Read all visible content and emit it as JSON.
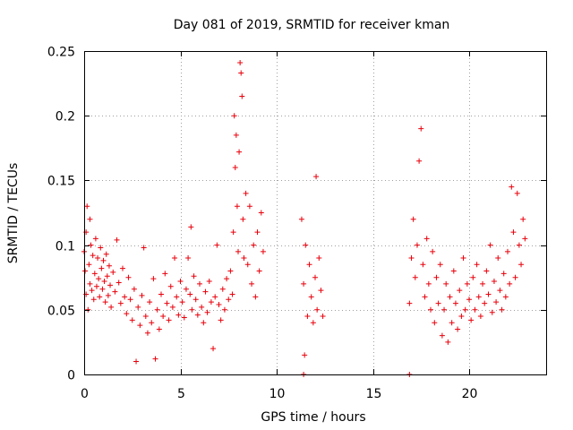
{
  "chart_data": {
    "type": "scatter",
    "title": "Day 081 of 2019, SRMTID for receiver kman",
    "xlabel": "GPS time / hours",
    "ylabel": "SRMTID / TECUs",
    "xlim": [
      0,
      24
    ],
    "ylim": [
      0,
      0.25
    ],
    "grid": true,
    "marker": "+",
    "color": "#e8000b",
    "x_ticks": [
      0,
      5,
      10,
      15,
      20
    ],
    "x_tick_labels": [
      "0",
      "5",
      "10",
      "15",
      "20"
    ],
    "y_ticks": [
      0,
      0.05,
      0.1,
      0.15,
      0.2,
      0.25
    ],
    "y_tick_labels": [
      "0",
      "0.05",
      "0.1",
      "0.15",
      "0.2",
      "0.25"
    ],
    "series": [
      {
        "name": "SRMTID",
        "points": [
          [
            0.0,
            0.095
          ],
          [
            0.05,
            0.08
          ],
          [
            0.1,
            0.062
          ],
          [
            0.1,
            0.11
          ],
          [
            0.15,
            0.13
          ],
          [
            0.2,
            0.05
          ],
          [
            0.25,
            0.085
          ],
          [
            0.3,
            0.07
          ],
          [
            0.3,
            0.12
          ],
          [
            0.35,
            0.1
          ],
          [
            0.4,
            0.065
          ],
          [
            0.45,
            0.092
          ],
          [
            0.5,
            0.058
          ],
          [
            0.55,
            0.078
          ],
          [
            0.6,
            0.105
          ],
          [
            0.65,
            0.068
          ],
          [
            0.7,
            0.09
          ],
          [
            0.75,
            0.074
          ],
          [
            0.8,
            0.06
          ],
          [
            0.85,
            0.098
          ],
          [
            0.9,
            0.082
          ],
          [
            0.95,
            0.066
          ],
          [
            1.0,
            0.088
          ],
          [
            1.05,
            0.072
          ],
          [
            1.1,
            0.056
          ],
          [
            1.15,
            0.093
          ],
          [
            1.2,
            0.076
          ],
          [
            1.25,
            0.061
          ],
          [
            1.3,
            0.084
          ],
          [
            1.35,
            0.069
          ],
          [
            1.4,
            0.052
          ],
          [
            1.5,
            0.079
          ],
          [
            1.6,
            0.064
          ],
          [
            1.7,
            0.104
          ],
          [
            1.8,
            0.071
          ],
          [
            1.9,
            0.055
          ],
          [
            2.0,
            0.082
          ],
          [
            2.1,
            0.06
          ],
          [
            2.2,
            0.047
          ],
          [
            2.3,
            0.075
          ],
          [
            2.4,
            0.058
          ],
          [
            2.5,
            0.042
          ],
          [
            2.6,
            0.066
          ],
          [
            2.7,
            0.01
          ],
          [
            2.8,
            0.052
          ],
          [
            2.9,
            0.038
          ],
          [
            3.0,
            0.061
          ],
          [
            3.1,
            0.098
          ],
          [
            3.2,
            0.045
          ],
          [
            3.3,
            0.032
          ],
          [
            3.4,
            0.056
          ],
          [
            3.5,
            0.04
          ],
          [
            3.6,
            0.074
          ],
          [
            3.7,
            0.012
          ],
          [
            3.8,
            0.05
          ],
          [
            3.9,
            0.035
          ],
          [
            4.0,
            0.062
          ],
          [
            4.1,
            0.045
          ],
          [
            4.2,
            0.078
          ],
          [
            4.3,
            0.055
          ],
          [
            4.4,
            0.042
          ],
          [
            4.5,
            0.068
          ],
          [
            4.6,
            0.052
          ],
          [
            4.7,
            0.09
          ],
          [
            4.8,
            0.06
          ],
          [
            4.9,
            0.046
          ],
          [
            5.0,
            0.072
          ],
          [
            5.1,
            0.056
          ],
          [
            5.2,
            0.044
          ],
          [
            5.3,
            0.066
          ],
          [
            5.4,
            0.09
          ],
          [
            5.5,
            0.062
          ],
          [
            5.55,
            0.114
          ],
          [
            5.6,
            0.05
          ],
          [
            5.7,
            0.076
          ],
          [
            5.8,
            0.058
          ],
          [
            5.9,
            0.046
          ],
          [
            6.0,
            0.07
          ],
          [
            6.1,
            0.052
          ],
          [
            6.2,
            0.04
          ],
          [
            6.3,
            0.064
          ],
          [
            6.4,
            0.048
          ],
          [
            6.5,
            0.072
          ],
          [
            6.6,
            0.056
          ],
          [
            6.7,
            0.02
          ],
          [
            6.8,
            0.06
          ],
          [
            6.9,
            0.1
          ],
          [
            7.0,
            0.054
          ],
          [
            7.1,
            0.042
          ],
          [
            7.2,
            0.066
          ],
          [
            7.3,
            0.05
          ],
          [
            7.4,
            0.074
          ],
          [
            7.5,
            0.058
          ],
          [
            7.6,
            0.08
          ],
          [
            7.7,
            0.062
          ],
          [
            7.75,
            0.11
          ],
          [
            7.8,
            0.2
          ],
          [
            7.85,
            0.16
          ],
          [
            7.9,
            0.185
          ],
          [
            7.95,
            0.13
          ],
          [
            8.0,
            0.095
          ],
          [
            8.05,
            0.172
          ],
          [
            8.1,
            0.241
          ],
          [
            8.15,
            0.233
          ],
          [
            8.2,
            0.215
          ],
          [
            8.25,
            0.12
          ],
          [
            8.3,
            0.09
          ],
          [
            8.4,
            0.14
          ],
          [
            8.5,
            0.085
          ],
          [
            8.6,
            0.13
          ],
          [
            8.7,
            0.07
          ],
          [
            8.8,
            0.1
          ],
          [
            8.9,
            0.06
          ],
          [
            9.0,
            0.11
          ],
          [
            9.1,
            0.08
          ],
          [
            9.2,
            0.125
          ],
          [
            9.3,
            0.095
          ],
          [
            11.3,
            0.12
          ],
          [
            11.4,
            0.07
          ],
          [
            11.45,
            0.015
          ],
          [
            11.5,
            0.1
          ],
          [
            11.6,
            0.045
          ],
          [
            11.7,
            0.085
          ],
          [
            11.8,
            0.06
          ],
          [
            11.9,
            0.04
          ],
          [
            12.0,
            0.075
          ],
          [
            12.05,
            0.153
          ],
          [
            12.1,
            0.05
          ],
          [
            12.2,
            0.09
          ],
          [
            12.3,
            0.065
          ],
          [
            12.4,
            0.045
          ],
          [
            16.9,
            0.055
          ],
          [
            17.0,
            0.09
          ],
          [
            17.1,
            0.12
          ],
          [
            17.2,
            0.075
          ],
          [
            17.3,
            0.1
          ],
          [
            17.4,
            0.165
          ],
          [
            17.5,
            0.19
          ],
          [
            17.6,
            0.085
          ],
          [
            17.7,
            0.06
          ],
          [
            17.8,
            0.105
          ],
          [
            17.9,
            0.07
          ],
          [
            18.0,
            0.05
          ],
          [
            18.1,
            0.095
          ],
          [
            18.2,
            0.04
          ],
          [
            18.3,
            0.075
          ],
          [
            18.4,
            0.055
          ],
          [
            18.5,
            0.085
          ],
          [
            18.6,
            0.03
          ],
          [
            18.7,
            0.05
          ],
          [
            18.8,
            0.07
          ],
          [
            18.9,
            0.025
          ],
          [
            19.0,
            0.06
          ],
          [
            19.1,
            0.04
          ],
          [
            19.2,
            0.08
          ],
          [
            19.3,
            0.055
          ],
          [
            19.4,
            0.035
          ],
          [
            19.5,
            0.065
          ],
          [
            19.6,
            0.045
          ],
          [
            19.7,
            0.09
          ],
          [
            19.8,
            0.05
          ],
          [
            19.9,
            0.07
          ],
          [
            20.0,
            0.058
          ],
          [
            20.1,
            0.042
          ],
          [
            20.2,
            0.075
          ],
          [
            20.3,
            0.05
          ],
          [
            20.4,
            0.085
          ],
          [
            20.5,
            0.06
          ],
          [
            20.6,
            0.045
          ],
          [
            20.7,
            0.07
          ],
          [
            20.8,
            0.055
          ],
          [
            20.9,
            0.08
          ],
          [
            21.0,
            0.062
          ],
          [
            21.1,
            0.1
          ],
          [
            21.2,
            0.048
          ],
          [
            21.3,
            0.072
          ],
          [
            21.4,
            0.056
          ],
          [
            21.5,
            0.09
          ],
          [
            21.6,
            0.065
          ],
          [
            21.7,
            0.05
          ],
          [
            21.8,
            0.078
          ],
          [
            21.9,
            0.06
          ],
          [
            22.0,
            0.095
          ],
          [
            22.1,
            0.07
          ],
          [
            22.2,
            0.145
          ],
          [
            22.3,
            0.11
          ],
          [
            22.4,
            0.075
          ],
          [
            22.5,
            0.14
          ],
          [
            22.6,
            0.1
          ],
          [
            22.7,
            0.085
          ],
          [
            22.8,
            0.12
          ],
          [
            22.9,
            0.105
          ],
          [
            11.4,
            0.0
          ],
          [
            16.9,
            0.0
          ]
        ]
      }
    ]
  }
}
